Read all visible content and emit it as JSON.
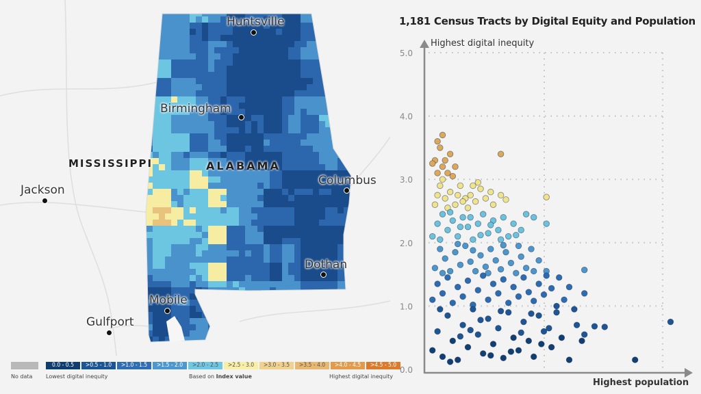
{
  "map": {
    "state_label": "ALABAMA",
    "neighbor_label": "MISSISSIPPI",
    "cities": [
      {
        "name": "Huntsville"
      },
      {
        "name": "Birmingham"
      },
      {
        "name": "Columbus"
      },
      {
        "name": "Dothan"
      },
      {
        "name": "Mobile"
      },
      {
        "name": "Jackson"
      },
      {
        "name": "Gulfport"
      }
    ]
  },
  "legend": {
    "no_data": "No data",
    "no_data_color": "#b8b8b8",
    "bins": [
      {
        "label": "0.0 - 0.5",
        "color": "#0e3d70"
      },
      {
        "label": ">0.5 - 1.0",
        "color": "#1c5596"
      },
      {
        "label": ">1.0 - 1.5",
        "color": "#2f6db5"
      },
      {
        "label": ">1.5 - 2.0",
        "color": "#4d97d0"
      },
      {
        "label": ">2.0 - 2.5",
        "color": "#6fc7e3"
      },
      {
        "label": ">2.5 - 3.0",
        "color": "#f8eea6"
      },
      {
        "label": ">3.0 - 3.5",
        "color": "#f1d18e"
      },
      {
        "label": ">3.5 - 4.0",
        "color": "#e9b870"
      },
      {
        "label": ">4.0 - 4.5",
        "color": "#e39a4a"
      },
      {
        "label": ">4.5 - 5.0",
        "color": "#dc7a2c"
      }
    ],
    "low_label": "Lowest digital inequity",
    "based_on": "Based on",
    "based_on_bold": "Index value",
    "high_label": "Highest digital inequity"
  },
  "chart_data": {
    "type": "scatter",
    "title": "1,181 Census Tracts by Digital Equity and Population",
    "ylabel": "Highest digital inequity",
    "xlabel": "Highest population",
    "ylim": [
      0,
      5
    ],
    "yticks": [
      "0.0",
      "1.0",
      "2.0",
      "3.0",
      "4.0",
      "5.0"
    ],
    "grid": true,
    "point_colors": {
      "0-0.5": "#123f73",
      "0.5-1": "#1d5595",
      "1-1.5": "#2d6cb2",
      "1.5-2": "#4c96cc",
      "2-2.5": "#6cc2dc",
      "2.5-3": "#f1e38a",
      "3-5": "#dca85a"
    },
    "points": [
      [
        3,
        3.6
      ],
      [
        5,
        3.7
      ],
      [
        2,
        3.3
      ],
      [
        4,
        3.5
      ],
      [
        6,
        3.3
      ],
      [
        8,
        3.4
      ],
      [
        3,
        3.1
      ],
      [
        7,
        3.1
      ],
      [
        10,
        3.2
      ],
      [
        28,
        3.4
      ],
      [
        5,
        3.2
      ],
      [
        1,
        3.25
      ],
      [
        9,
        3.05
      ],
      [
        2,
        2.6
      ],
      [
        4,
        2.9
      ],
      [
        6,
        2.7
      ],
      [
        8,
        2.8
      ],
      [
        10,
        2.6
      ],
      [
        12,
        2.9
      ],
      [
        14,
        2.7
      ],
      [
        16,
        2.75
      ],
      [
        18,
        2.65
      ],
      [
        20,
        2.85
      ],
      [
        22,
        2.7
      ],
      [
        25,
        2.6
      ],
      [
        28,
        2.75
      ],
      [
        30,
        2.68
      ],
      [
        46,
        2.72
      ],
      [
        3,
        2.75
      ],
      [
        7,
        2.55
      ],
      [
        11,
        2.75
      ],
      [
        15,
        2.55
      ],
      [
        19,
        2.95
      ],
      [
        24,
        2.8
      ],
      [
        5,
        3.0
      ],
      [
        13,
        2.65
      ],
      [
        17,
        2.9
      ],
      [
        1,
        2.1
      ],
      [
        3,
        2.3
      ],
      [
        5,
        2.45
      ],
      [
        7,
        2.2
      ],
      [
        9,
        2.35
      ],
      [
        11,
        2.1
      ],
      [
        13,
        2.4
      ],
      [
        15,
        2.25
      ],
      [
        17,
        2.05
      ],
      [
        19,
        2.3
      ],
      [
        21,
        2.45
      ],
      [
        23,
        2.15
      ],
      [
        25,
        2.35
      ],
      [
        27,
        2.2
      ],
      [
        29,
        2.4
      ],
      [
        31,
        2.1
      ],
      [
        33,
        2.3
      ],
      [
        36,
        2.2
      ],
      [
        38,
        2.45
      ],
      [
        41,
        2.4
      ],
      [
        4,
        2.05
      ],
      [
        8,
        2.48
      ],
      [
        12,
        2.25
      ],
      [
        16,
        2.4
      ],
      [
        20,
        2.12
      ],
      [
        24,
        2.28
      ],
      [
        28,
        2.05
      ],
      [
        34,
        2.12
      ],
      [
        46,
        2.3
      ],
      [
        2,
        1.6
      ],
      [
        4,
        1.9
      ],
      [
        6,
        1.75
      ],
      [
        8,
        1.55
      ],
      [
        10,
        1.85
      ],
      [
        12,
        1.65
      ],
      [
        14,
        1.95
      ],
      [
        16,
        1.7
      ],
      [
        18,
        1.55
      ],
      [
        20,
        1.8
      ],
      [
        22,
        1.62
      ],
      [
        24,
        1.9
      ],
      [
        26,
        1.72
      ],
      [
        28,
        1.58
      ],
      [
        30,
        1.85
      ],
      [
        32,
        1.68
      ],
      [
        34,
        1.52
      ],
      [
        36,
        1.78
      ],
      [
        38,
        1.6
      ],
      [
        40,
        1.9
      ],
      [
        43,
        1.72
      ],
      [
        46,
        1.55
      ],
      [
        61,
        1.57
      ],
      [
        5,
        1.52
      ],
      [
        11,
        1.98
      ],
      [
        17,
        1.88
      ],
      [
        23,
        1.52
      ],
      [
        29,
        1.96
      ],
      [
        35,
        1.95
      ],
      [
        41,
        1.55
      ],
      [
        1,
        1.1
      ],
      [
        3,
        1.35
      ],
      [
        5,
        1.2
      ],
      [
        7,
        1.45
      ],
      [
        9,
        1.05
      ],
      [
        11,
        1.3
      ],
      [
        13,
        1.15
      ],
      [
        15,
        1.4
      ],
      [
        17,
        1.02
      ],
      [
        19,
        1.25
      ],
      [
        21,
        1.48
      ],
      [
        23,
        1.1
      ],
      [
        25,
        1.35
      ],
      [
        27,
        1.2
      ],
      [
        29,
        1.42
      ],
      [
        31,
        1.05
      ],
      [
        33,
        1.3
      ],
      [
        35,
        1.15
      ],
      [
        37,
        1.45
      ],
      [
        39,
        1.22
      ],
      [
        41,
        1.08
      ],
      [
        43,
        1.35
      ],
      [
        45,
        1.18
      ],
      [
        48,
        1.28
      ],
      [
        51,
        1.45
      ],
      [
        53,
        1.1
      ],
      [
        55,
        1.3
      ],
      [
        61,
        1.2
      ],
      [
        50,
        1.0
      ],
      [
        46,
        1.48
      ],
      [
        1,
        0.3
      ],
      [
        3,
        0.6
      ],
      [
        5,
        0.2
      ],
      [
        7,
        0.85
      ],
      [
        9,
        0.45
      ],
      [
        11,
        0.15
      ],
      [
        13,
        0.7
      ],
      [
        15,
        0.35
      ],
      [
        17,
        0.95
      ],
      [
        19,
        0.55
      ],
      [
        21,
        0.25
      ],
      [
        23,
        0.8
      ],
      [
        25,
        0.4
      ],
      [
        27,
        0.65
      ],
      [
        29,
        0.18
      ],
      [
        31,
        0.9
      ],
      [
        33,
        0.5
      ],
      [
        35,
        0.3
      ],
      [
        37,
        0.75
      ],
      [
        39,
        0.45
      ],
      [
        41,
        0.2
      ],
      [
        43,
        0.85
      ],
      [
        45,
        0.6
      ],
      [
        48,
        0.35
      ],
      [
        50,
        0.9
      ],
      [
        52,
        0.5
      ],
      [
        55,
        0.15
      ],
      [
        58,
        0.7
      ],
      [
        61,
        0.55
      ],
      [
        65,
        0.68
      ],
      [
        69,
        0.67
      ],
      [
        81,
        0.15
      ],
      [
        95,
        0.75
      ],
      [
        4,
        0.95
      ],
      [
        8,
        0.12
      ],
      [
        12,
        0.52
      ],
      [
        16,
        0.62
      ],
      [
        20,
        0.78
      ],
      [
        24,
        0.22
      ],
      [
        28,
        0.92
      ],
      [
        32,
        0.28
      ],
      [
        36,
        0.58
      ],
      [
        40,
        0.88
      ],
      [
        44,
        0.4
      ],
      [
        47,
        0.65
      ],
      [
        57,
        0.95
      ],
      [
        60,
        0.45
      ]
    ]
  }
}
